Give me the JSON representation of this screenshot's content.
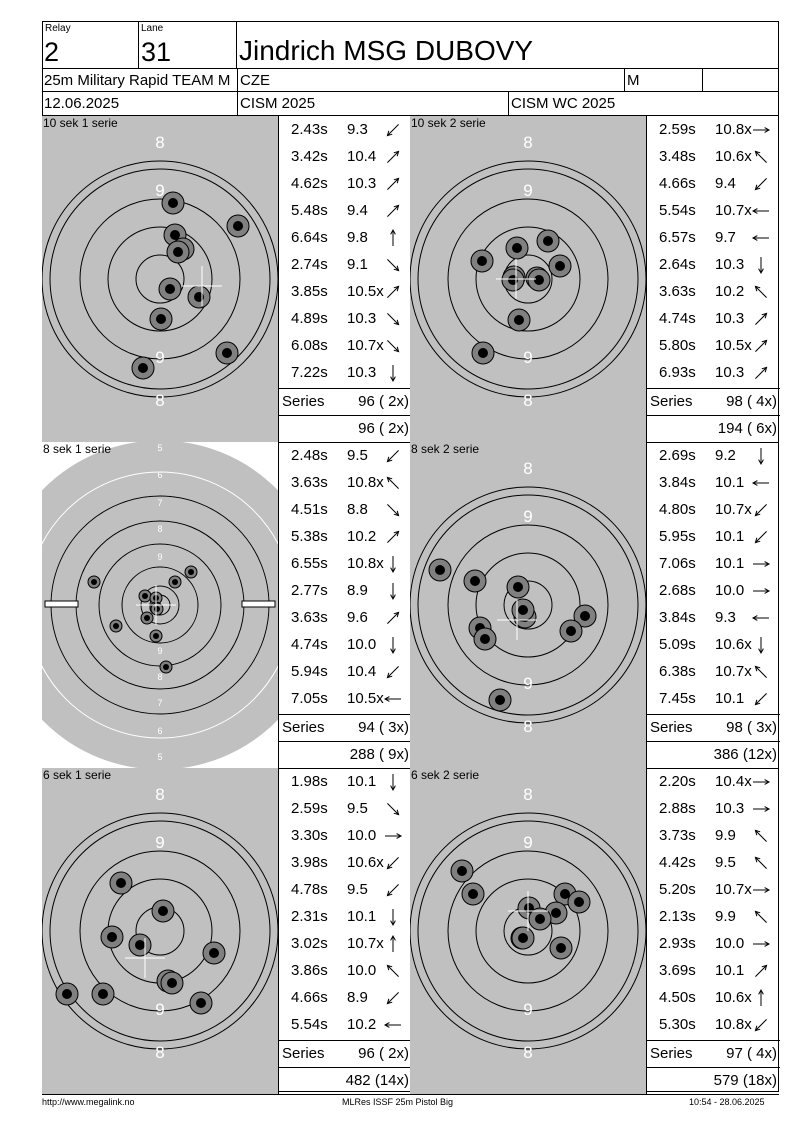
{
  "header": {
    "relay_label": "Relay",
    "relay_value": "2",
    "lane_label": "Lane",
    "lane_value": "31",
    "shooter_name": "Jindrich MSG DUBOVY",
    "event": "25m Military Rapid TEAM M",
    "nation": "CZE",
    "gender": "M",
    "extra": "",
    "date": "12.06.2025",
    "competition": "CISM 2025",
    "championship": "CISM WC 2025"
  },
  "panels": [
    {
      "label": "10 sek 1 serie",
      "target": "pistol-big",
      "shots": [
        {
          "time": "2.43s",
          "value": "9.3",
          "dir": "down-left"
        },
        {
          "time": "3.42s",
          "value": "10.4",
          "dir": "up-right"
        },
        {
          "time": "4.62s",
          "value": "10.3",
          "dir": "up-right"
        },
        {
          "time": "5.48s",
          "value": "9.4",
          "dir": "up-right"
        },
        {
          "time": "6.64s",
          "value": "9.8",
          "dir": "up"
        },
        {
          "time": "2.74s",
          "value": "9.1",
          "dir": "down-right"
        },
        {
          "time": "3.85s",
          "value": "10.5x",
          "dir": "up-right"
        },
        {
          "time": "4.89s",
          "value": "10.3",
          "dir": "down-right"
        },
        {
          "time": "6.08s",
          "value": "10.7x",
          "dir": "down-right"
        },
        {
          "time": "7.22s",
          "value": "10.3",
          "dir": "down"
        }
      ],
      "series_label": "Series",
      "series_score": "96 ( 2x)",
      "cumulative": "96 ( 2x)"
    },
    {
      "label": "10 sek 2 serie",
      "target": "pistol-big",
      "shots": [
        {
          "time": "2.59s",
          "value": "10.8x",
          "dir": "right"
        },
        {
          "time": "3.48s",
          "value": "10.6x",
          "dir": "up-left"
        },
        {
          "time": "4.66s",
          "value": "9.4",
          "dir": "down-left"
        },
        {
          "time": "5.54s",
          "value": "10.7x",
          "dir": "left"
        },
        {
          "time": "6.57s",
          "value": "9.7",
          "dir": "left"
        },
        {
          "time": "2.64s",
          "value": "10.3",
          "dir": "down"
        },
        {
          "time": "3.63s",
          "value": "10.2",
          "dir": "up-left"
        },
        {
          "time": "4.74s",
          "value": "10.3",
          "dir": "up-right"
        },
        {
          "time": "5.80s",
          "value": "10.5x",
          "dir": "up-right"
        },
        {
          "time": "6.93s",
          "value": "10.3",
          "dir": "up-right"
        }
      ],
      "series_label": "Series",
      "series_score": "98 ( 4x)",
      "cumulative": "194 ( 6x)"
    },
    {
      "label": "8 sek 1 serie",
      "target": "precision-zoom",
      "shots": [
        {
          "time": "2.48s",
          "value": "9.5",
          "dir": "down-left"
        },
        {
          "time": "3.63s",
          "value": "10.8x",
          "dir": "up-left"
        },
        {
          "time": "4.51s",
          "value": "8.8",
          "dir": "down-right"
        },
        {
          "time": "5.38s",
          "value": "10.2",
          "dir": "up-right"
        },
        {
          "time": "6.55s",
          "value": "10.8x",
          "dir": "down"
        },
        {
          "time": "2.77s",
          "value": "8.9",
          "dir": "down"
        },
        {
          "time": "3.63s",
          "value": "9.6",
          "dir": "up-right"
        },
        {
          "time": "4.74s",
          "value": "10.0",
          "dir": "down"
        },
        {
          "time": "5.94s",
          "value": "10.4",
          "dir": "down-left"
        },
        {
          "time": "7.05s",
          "value": "10.5x",
          "dir": "left"
        }
      ],
      "series_label": "Series",
      "series_score": "94 ( 3x)",
      "cumulative": "288 ( 9x)"
    },
    {
      "label": "8 sek 2 serie",
      "target": "pistol-big",
      "shots": [
        {
          "time": "2.69s",
          "value": "9.2",
          "dir": "down"
        },
        {
          "time": "3.84s",
          "value": "10.1",
          "dir": "left"
        },
        {
          "time": "4.80s",
          "value": "10.7x",
          "dir": "down-left"
        },
        {
          "time": "5.95s",
          "value": "10.1",
          "dir": "down-left"
        },
        {
          "time": "7.06s",
          "value": "10.1",
          "dir": "right"
        },
        {
          "time": "2.68s",
          "value": "10.0",
          "dir": "right"
        },
        {
          "time": "3.84s",
          "value": "9.3",
          "dir": "left"
        },
        {
          "time": "5.09s",
          "value": "10.6x",
          "dir": "down"
        },
        {
          "time": "6.38s",
          "value": "10.7x",
          "dir": "up-left"
        },
        {
          "time": "7.45s",
          "value": "10.1",
          "dir": "down-left"
        }
      ],
      "series_label": "Series",
      "series_score": "98 ( 3x)",
      "cumulative": "386 (12x)"
    },
    {
      "label": "6 sek 1 serie",
      "target": "pistol-big",
      "shots": [
        {
          "time": "1.98s",
          "value": "10.1",
          "dir": "down"
        },
        {
          "time": "2.59s",
          "value": "9.5",
          "dir": "down-right"
        },
        {
          "time": "3.30s",
          "value": "10.0",
          "dir": "right"
        },
        {
          "time": "3.98s",
          "value": "10.6x",
          "dir": "down-left"
        },
        {
          "time": "4.78s",
          "value": "9.5",
          "dir": "down-left"
        },
        {
          "time": "2.31s",
          "value": "10.1",
          "dir": "down"
        },
        {
          "time": "3.02s",
          "value": "10.7x",
          "dir": "up"
        },
        {
          "time": "3.86s",
          "value": "10.0",
          "dir": "up-left"
        },
        {
          "time": "4.66s",
          "value": "8.9",
          "dir": "down-left"
        },
        {
          "time": "5.54s",
          "value": "10.2",
          "dir": "left"
        }
      ],
      "series_label": "Series",
      "series_score": "96 ( 2x)",
      "cumulative": "482 (14x)"
    },
    {
      "label": "6 sek 2 serie",
      "target": "pistol-big",
      "shots": [
        {
          "time": "2.20s",
          "value": "10.4x",
          "dir": "right"
        },
        {
          "time": "2.88s",
          "value": "10.3",
          "dir": "right"
        },
        {
          "time": "3.73s",
          "value": "9.9",
          "dir": "up-left"
        },
        {
          "time": "4.42s",
          "value": "9.5",
          "dir": "up-left"
        },
        {
          "time": "5.20s",
          "value": "10.7x",
          "dir": "right"
        },
        {
          "time": "2.13s",
          "value": "9.9",
          "dir": "up-left"
        },
        {
          "time": "2.93s",
          "value": "10.0",
          "dir": "right"
        },
        {
          "time": "3.69s",
          "value": "10.1",
          "dir": "up-right"
        },
        {
          "time": "4.50s",
          "value": "10.6x",
          "dir": "up"
        },
        {
          "time": "5.30s",
          "value": "10.8x",
          "dir": "down-left"
        }
      ],
      "series_label": "Series",
      "series_score": "97 ( 4x)",
      "cumulative": "579 (18x)"
    }
  ],
  "footer": {
    "left": "http://www.megalink.no",
    "center": "MLRes ISSF 25m Pistol Big",
    "right": "10:54 - 28.06.2025"
  },
  "colors": {
    "target_gray": "#c0c0c0",
    "hole_outer": "#808080",
    "hole_inner": "#000000"
  }
}
